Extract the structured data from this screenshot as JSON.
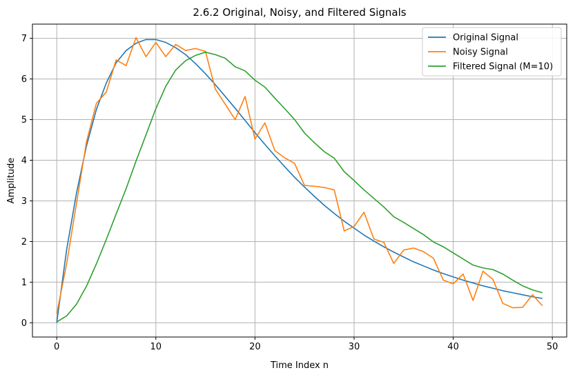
{
  "chart_data": {
    "type": "line",
    "title": "2.6.2 Original, Noisy, and Filtered Signals",
    "xlabel": "Time Index n",
    "ylabel": "Amplitude",
    "xlim": [
      -2.45,
      51.45
    ],
    "ylim": [
      -0.35,
      7.35
    ],
    "xticks": [
      0,
      10,
      20,
      30,
      40,
      50
    ],
    "yticks": [
      0,
      1,
      2,
      3,
      4,
      5,
      6,
      7
    ],
    "grid": true,
    "legend_position": "upper right",
    "x": [
      0,
      1,
      2,
      3,
      4,
      5,
      6,
      7,
      8,
      9,
      10,
      11,
      12,
      13,
      14,
      15,
      16,
      17,
      18,
      19,
      20,
      21,
      22,
      23,
      24,
      25,
      26,
      27,
      28,
      29,
      30,
      31,
      32,
      33,
      34,
      35,
      36,
      37,
      38,
      39,
      40,
      41,
      42,
      43,
      44,
      45,
      46,
      47,
      48,
      49
    ],
    "series": [
      {
        "name": "Original Signal",
        "color": "#1f77b4",
        "values": [
          0.0,
          1.8,
          3.2,
          4.35,
          5.25,
          5.9,
          6.4,
          6.7,
          6.88,
          6.97,
          6.97,
          6.9,
          6.77,
          6.6,
          6.38,
          6.13,
          5.86,
          5.57,
          5.28,
          4.98,
          4.68,
          4.39,
          4.11,
          3.84,
          3.58,
          3.34,
          3.11,
          2.89,
          2.69,
          2.5,
          2.33,
          2.16,
          2.01,
          1.87,
          1.74,
          1.62,
          1.5,
          1.4,
          1.3,
          1.21,
          1.13,
          1.05,
          0.98,
          0.91,
          0.85,
          0.79,
          0.74,
          0.69,
          0.64,
          0.6
        ]
      },
      {
        "name": "Noisy Signal",
        "color": "#ff7f0e",
        "values": [
          0.22,
          1.45,
          2.95,
          4.45,
          5.4,
          5.68,
          6.47,
          6.33,
          7.02,
          6.55,
          6.9,
          6.55,
          6.85,
          6.7,
          6.75,
          6.68,
          5.75,
          5.38,
          5.0,
          5.57,
          4.52,
          4.92,
          4.24,
          4.06,
          3.92,
          3.38,
          3.36,
          3.33,
          3.27,
          2.26,
          2.37,
          2.72,
          2.06,
          1.98,
          1.46,
          1.79,
          1.84,
          1.75,
          1.59,
          1.05,
          0.96,
          1.2,
          0.55,
          1.27,
          1.07,
          0.48,
          0.37,
          0.38,
          0.69,
          0.42
        ]
      },
      {
        "name": "Filtered Signal (M=10)",
        "color": "#2ca02c",
        "values": [
          0.02,
          0.17,
          0.46,
          0.9,
          1.45,
          2.05,
          2.68,
          3.3,
          3.98,
          4.62,
          5.27,
          5.82,
          6.22,
          6.45,
          6.58,
          6.66,
          6.6,
          6.51,
          6.3,
          6.2,
          5.97,
          5.8,
          5.53,
          5.27,
          5.0,
          4.67,
          4.43,
          4.21,
          4.05,
          3.72,
          3.5,
          3.27,
          3.06,
          2.85,
          2.61,
          2.47,
          2.32,
          2.17,
          1.99,
          1.87,
          1.72,
          1.57,
          1.42,
          1.35,
          1.31,
          1.2,
          1.05,
          0.91,
          0.81,
          0.74
        ]
      }
    ]
  }
}
